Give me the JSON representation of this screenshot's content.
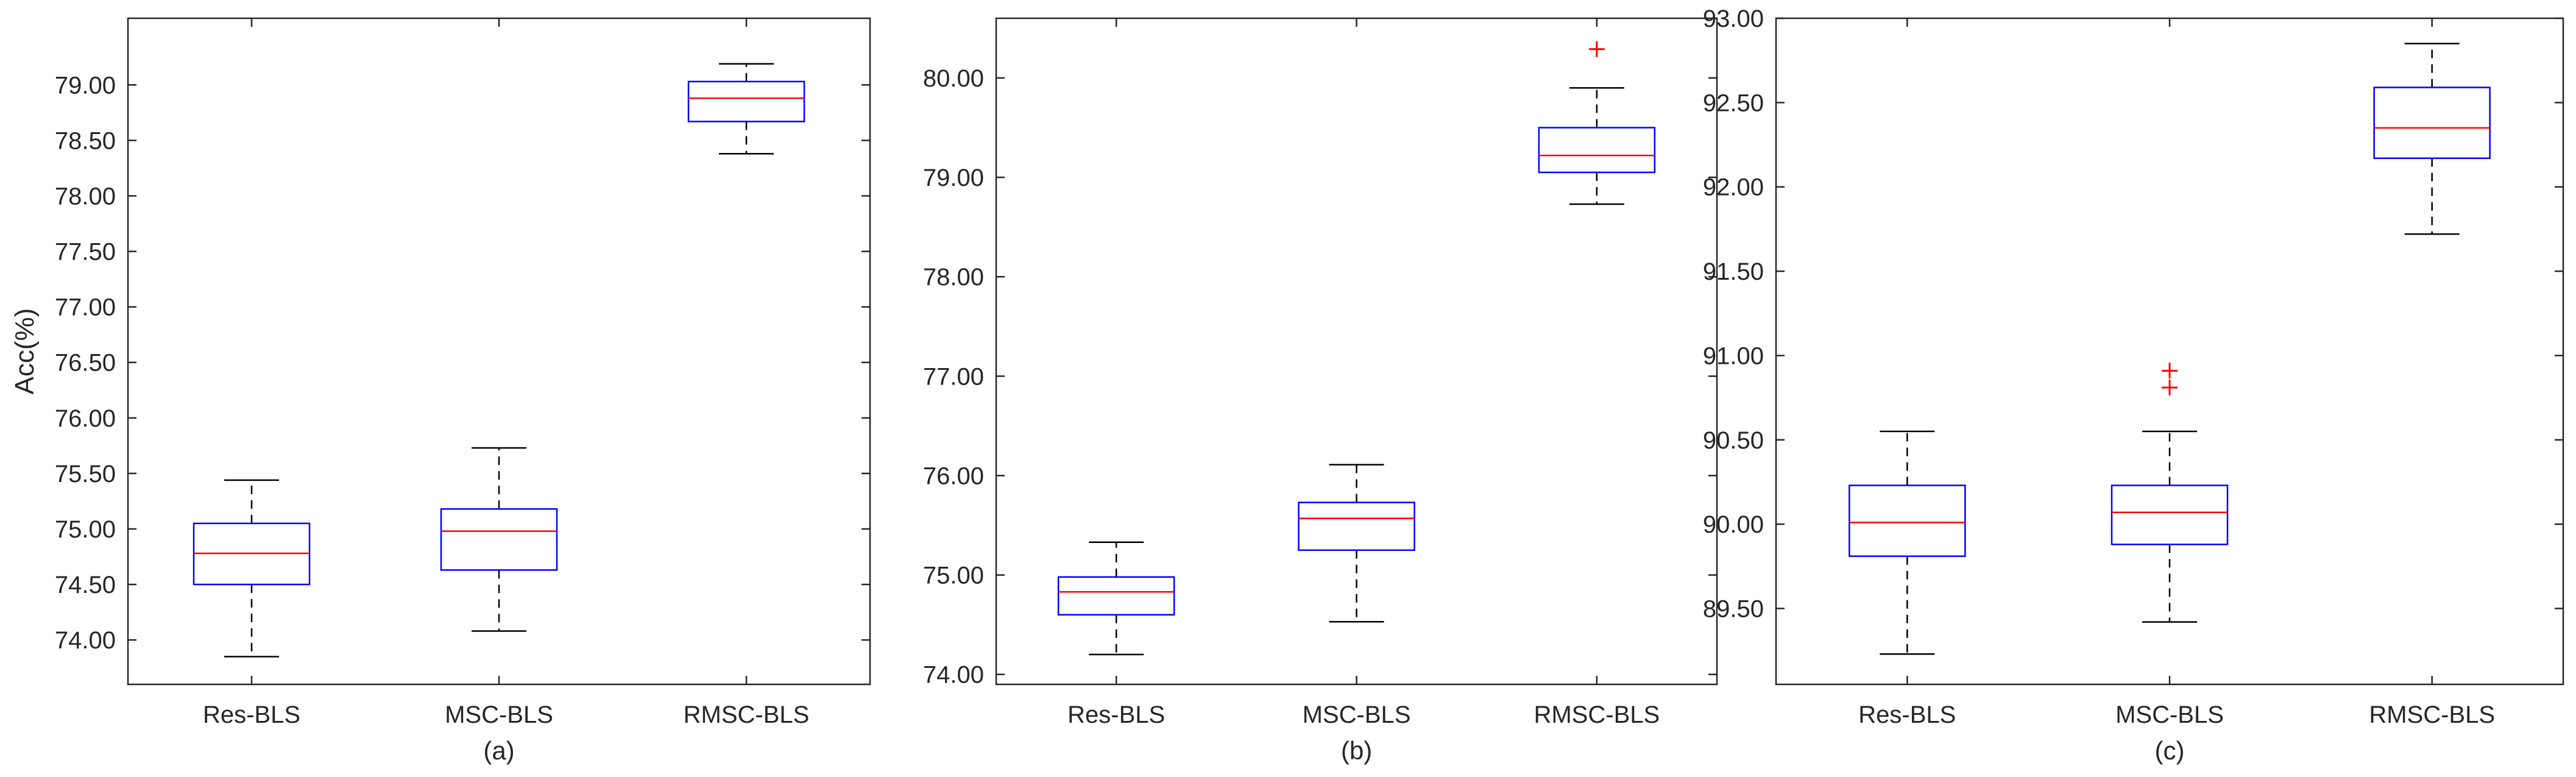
{
  "chart_data": [
    {
      "type": "box",
      "caption": "(a)",
      "ylabel": "Acc(%)",
      "ylim": [
        73.6,
        79.6
      ],
      "yticks": [
        "74.00",
        "74.50",
        "75.00",
        "75.50",
        "76.00",
        "76.50",
        "77.00",
        "77.50",
        "78.00",
        "78.50",
        "79.00"
      ],
      "categories": [
        "Res-BLS",
        "MSC-BLS",
        "RMSC-BLS"
      ],
      "boxes": [
        {
          "name": "Res-BLS",
          "whisker_low": 73.85,
          "q1": 74.5,
          "median": 74.78,
          "q3": 75.05,
          "whisker_high": 75.44,
          "outliers": []
        },
        {
          "name": "MSC-BLS",
          "whisker_low": 74.08,
          "q1": 74.63,
          "median": 74.98,
          "q3": 75.18,
          "whisker_high": 75.73,
          "outliers": []
        },
        {
          "name": "RMSC-BLS",
          "whisker_low": 78.38,
          "q1": 78.67,
          "median": 78.88,
          "q3": 79.03,
          "whisker_high": 79.19,
          "outliers": []
        }
      ]
    },
    {
      "type": "box",
      "caption": "(b)",
      "ylabel": "",
      "ylim": [
        73.9,
        80.6
      ],
      "yticks": [
        "74.00",
        "75.00",
        "76.00",
        "77.00",
        "78.00",
        "79.00",
        "80.00"
      ],
      "categories": [
        "Res-BLS",
        "MSC-BLS",
        "RMSC-BLS"
      ],
      "boxes": [
        {
          "name": "Res-BLS",
          "whisker_low": 74.2,
          "q1": 74.6,
          "median": 74.83,
          "q3": 74.98,
          "whisker_high": 75.33,
          "outliers": []
        },
        {
          "name": "MSC-BLS",
          "whisker_low": 74.53,
          "q1": 75.25,
          "median": 75.57,
          "q3": 75.73,
          "whisker_high": 76.11,
          "outliers": []
        },
        {
          "name": "RMSC-BLS",
          "whisker_low": 78.73,
          "q1": 79.05,
          "median": 79.22,
          "q3": 79.5,
          "whisker_high": 79.9,
          "outliers": [
            80.29
          ]
        }
      ]
    },
    {
      "type": "box",
      "caption": "(c)",
      "ylabel": "",
      "ylim": [
        89.05,
        93.0
      ],
      "yticks": [
        "89.50",
        "90.00",
        "90.50",
        "91.00",
        "91.50",
        "92.00",
        "92.50",
        "93.00"
      ],
      "categories": [
        "Res-BLS",
        "MSC-BLS",
        "RMSC-BLS"
      ],
      "boxes": [
        {
          "name": "Res-BLS",
          "whisker_low": 89.23,
          "q1": 89.81,
          "median": 90.01,
          "q3": 90.23,
          "whisker_high": 90.55,
          "outliers": []
        },
        {
          "name": "MSC-BLS",
          "whisker_low": 89.42,
          "q1": 89.88,
          "median": 90.07,
          "q3": 90.23,
          "whisker_high": 90.55,
          "outliers": [
            90.81,
            90.91
          ]
        },
        {
          "name": "RMSC-BLS",
          "whisker_low": 91.72,
          "q1": 92.17,
          "median": 92.35,
          "q3": 92.59,
          "whisker_high": 92.85,
          "outliers": []
        }
      ]
    }
  ],
  "colors": {
    "box": "#0000ff",
    "median": "#ff0000",
    "outlier": "#ff0000",
    "whisker": "#000000",
    "axis": "#262626"
  }
}
